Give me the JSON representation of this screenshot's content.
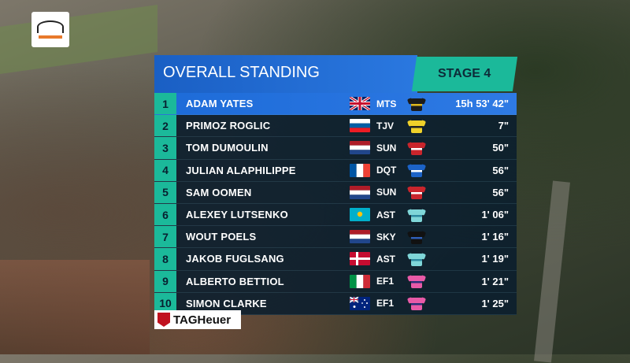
{
  "header": {
    "title": "OVERALL STANDING",
    "stage": "STAGE 4"
  },
  "sponsor": {
    "name": "TAGHeuer"
  },
  "standings": [
    {
      "rank": "1",
      "name": "ADAM YATES",
      "team": "MTS",
      "time": "15h 53' 42\"",
      "flag": "gb",
      "jersey": "leader"
    },
    {
      "rank": "2",
      "name": "PRIMOZ ROGLIC",
      "team": "TJV",
      "time": "7\"",
      "flag": "si",
      "jersey": "yellow"
    },
    {
      "rank": "3",
      "name": "TOM DUMOULIN",
      "team": "SUN",
      "time": "50\"",
      "flag": "nl",
      "jersey": "red"
    },
    {
      "rank": "4",
      "name": "JULIAN ALAPHILIPPE",
      "team": "DQT",
      "time": "56\"",
      "flag": "fr",
      "jersey": "blue"
    },
    {
      "rank": "5",
      "name": "SAM OOMEN",
      "team": "SUN",
      "time": "56\"",
      "flag": "nl",
      "jersey": "red"
    },
    {
      "rank": "6",
      "name": "ALEXEY LUTSENKO",
      "team": "AST",
      "time": "1' 06\"",
      "flag": "kz",
      "jersey": "aqua"
    },
    {
      "rank": "7",
      "name": "WOUT POELS",
      "team": "SKY",
      "time": "1' 16\"",
      "flag": "nl",
      "jersey": "black"
    },
    {
      "rank": "8",
      "name": "JAKOB FUGLSANG",
      "team": "AST",
      "time": "1' 19\"",
      "flag": "dk",
      "jersey": "aqua"
    },
    {
      "rank": "9",
      "name": "ALBERTO BETTIOL",
      "team": "EF1",
      "time": "1' 21\"",
      "flag": "it",
      "jersey": "pink"
    },
    {
      "rank": "10",
      "name": "SIMON CLARKE",
      "team": "EF1",
      "time": "1' 25\"",
      "flag": "au",
      "jersey": "pink"
    }
  ],
  "colors": {
    "accent": "#1bb99a",
    "title_bg": "#1a5fc4",
    "row_bg": "#0a1e2d"
  }
}
